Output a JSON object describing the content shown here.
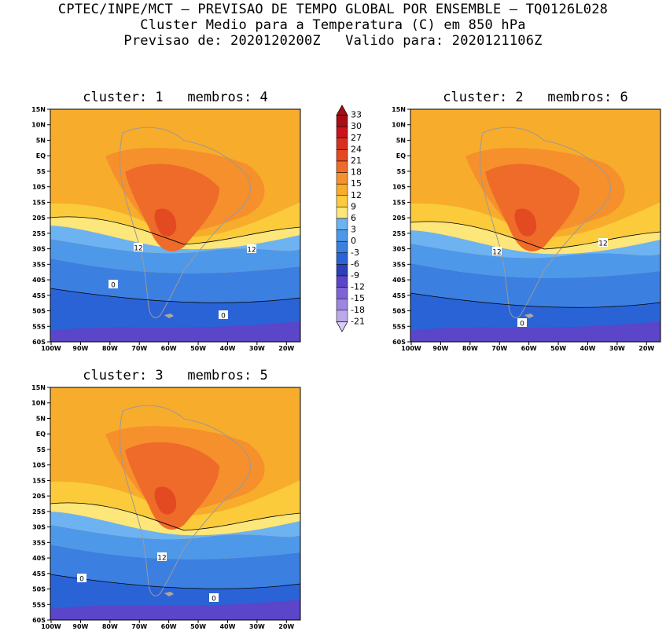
{
  "header": {
    "line1": "CPTEC/INPE/MCT – PREVISAO DE TEMPO GLOBAL POR ENSEMBLE – TQ0126L028",
    "line2": "Cluster Medio para a Temperatura (C) em 850 hPa",
    "line3": "Previsao de: 2020120200Z   Valido para: 2020121106Z"
  },
  "panels": [
    {
      "title": "cluster: 1   membros: 4",
      "contour_labels": [
        "12",
        "12",
        "0",
        "0"
      ]
    },
    {
      "title": "cluster: 2   membros: 6",
      "contour_labels": [
        "12",
        "12",
        "0"
      ]
    },
    {
      "title": "cluster: 3   membros: 5",
      "contour_labels": [
        "12",
        "0",
        "0"
      ]
    }
  ],
  "lat_labels": [
    "15N",
    "10N",
    "5N",
    "EQ",
    "5S",
    "10S",
    "15S",
    "20S",
    "25S",
    "30S",
    "35S",
    "40S",
    "45S",
    "50S",
    "55S",
    "60S"
  ],
  "lon_labels": [
    "100W",
    "90W",
    "80W",
    "70W",
    "60W",
    "50W",
    "40W",
    "30W",
    "20W"
  ],
  "colorbar": {
    "labels": [
      "33",
      "30",
      "27",
      "24",
      "21",
      "18",
      "15",
      "12",
      "9",
      "6",
      "3",
      "0",
      "-3",
      "-6",
      "-9",
      "-12",
      "-15",
      "-18",
      "-21"
    ],
    "colors": [
      "#a50f15",
      "#c8141d",
      "#d7301f",
      "#e34a22",
      "#ef6b2a",
      "#f5902c",
      "#f8ac2c",
      "#fbcb3c",
      "#fde67a",
      "#6db3f2",
      "#4e98ea",
      "#3b7fe0",
      "#2a63d6",
      "#2c3fb8",
      "#5b45c8",
      "#7d64d6",
      "#9c86e2",
      "#bbaaea",
      "#d8ccf4"
    ]
  }
}
